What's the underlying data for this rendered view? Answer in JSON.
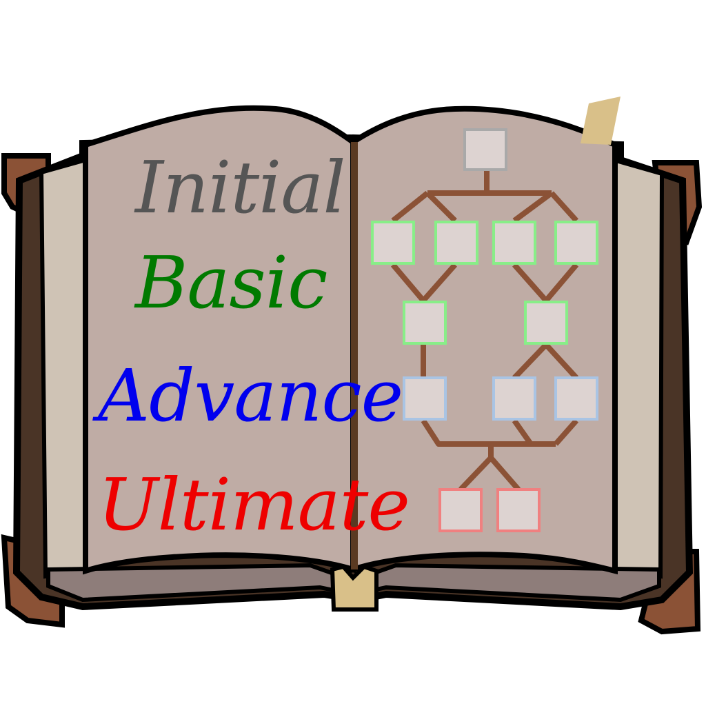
{
  "tiers": [
    {
      "id": "initial",
      "label": "Initial",
      "color": "#555555"
    },
    {
      "id": "basic",
      "label": "Basic",
      "color": "#007a00"
    },
    {
      "id": "advance",
      "label": "Advance",
      "color": "#0000ee"
    },
    {
      "id": "ultimate",
      "label": "Ultimate",
      "color": "#ee0000"
    }
  ],
  "skill_tree": {
    "branch_color": "#8b5236",
    "node_fill": "#ddd3d1",
    "tier_border_colors": {
      "initial": "#a9a9a9",
      "basic": "#88ee88",
      "advance": "#a9c4e4",
      "ultimate": "#f08080"
    },
    "node_tiers": [
      "initial",
      "basic",
      "basic",
      "basic",
      "basic",
      "basic",
      "basic",
      "advance",
      "advance",
      "advance",
      "ultimate",
      "ultimate"
    ],
    "node_count": 12
  },
  "palette": {
    "page": "#bfaca5",
    "page_shade": "#8e7d7a",
    "cover": "#4a3426",
    "cover_corner": "#8b5236",
    "spine": "#5a3a22",
    "page_edges": "#cfc3b5",
    "bookmark": "#d9c089",
    "outline": "#000000"
  }
}
